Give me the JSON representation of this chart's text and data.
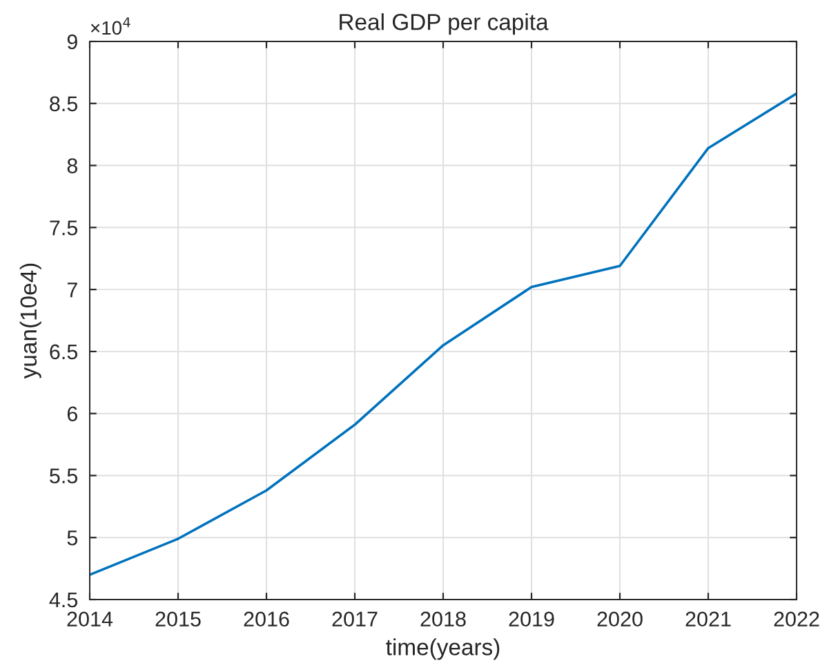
{
  "chart_data": {
    "type": "line",
    "title": "Real GDP per capita",
    "xlabel": "time(years)",
    "ylabel": "yuan(10e4)",
    "annotations": [
      "×10$^{4}$"
    ],
    "x": [
      2014,
      2015,
      2016,
      2017,
      2018,
      2019,
      2020,
      2021,
      2022
    ],
    "series": [
      {
        "color": "#0072bd",
        "values": [
          4.7,
          4.99,
          5.38,
          5.91,
          6.55,
          7.02,
          7.19,
          8.14,
          8.58
        ]
      }
    ],
    "xlim": [
      2014,
      2022
    ],
    "xticks": [
      2014,
      2015,
      2016,
      2017,
      2018,
      2019,
      2020,
      2021,
      2022
    ],
    "ylim": [
      4.5,
      9
    ],
    "yticks": [
      4.5,
      5,
      5.5,
      6,
      6.5,
      7,
      7.5,
      8,
      8.5,
      9
    ],
    "grid": true,
    "marker": "none",
    "line_style": "solid"
  }
}
